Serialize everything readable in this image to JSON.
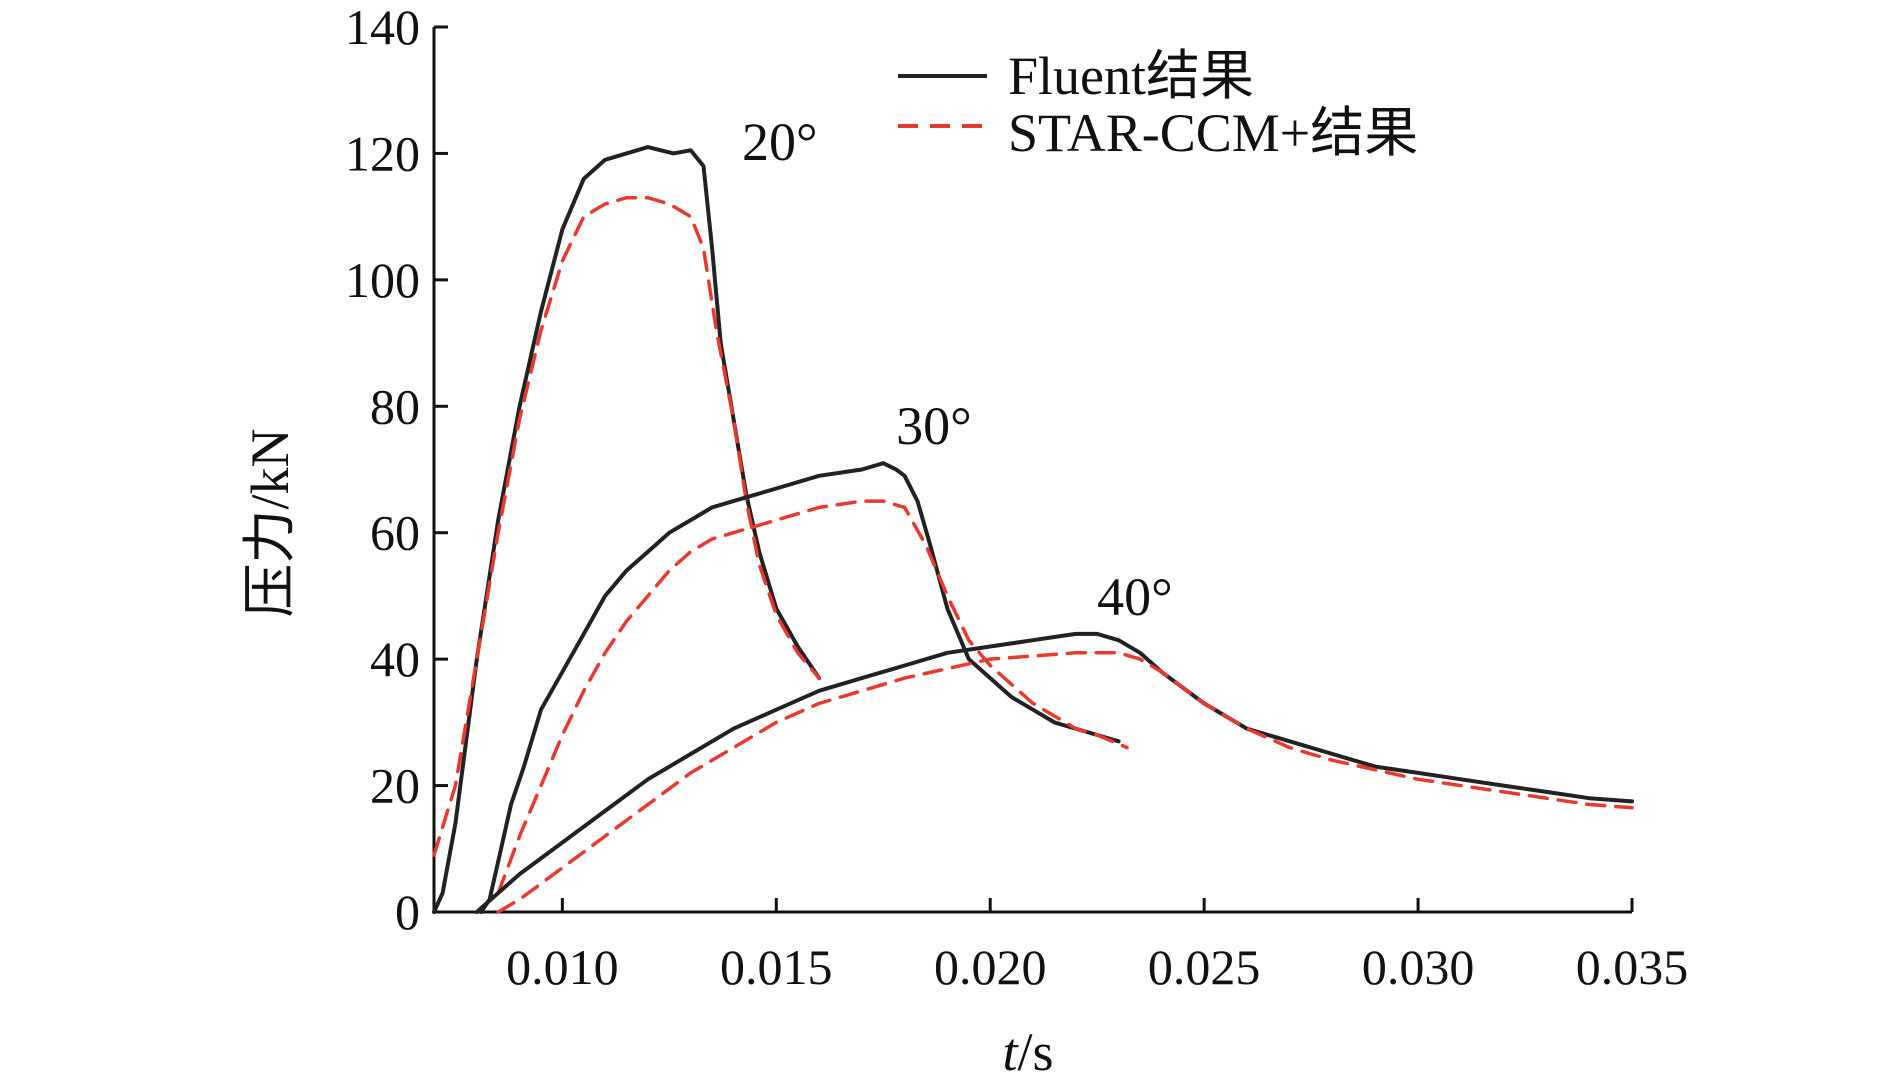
{
  "chart_data": {
    "type": "line",
    "title": "",
    "xlabel_italic": "t",
    "xlabel_unit": "/s",
    "ylabel": "压力/kN",
    "xlim": [
      0.007,
      0.035
    ],
    "ylim": [
      0,
      140
    ],
    "x_ticks": [
      0.01,
      0.015,
      0.02,
      0.025,
      0.03,
      0.035
    ],
    "x_tick_labels": [
      "0.010",
      "0.015",
      "0.020",
      "0.025",
      "0.030",
      "0.035"
    ],
    "y_ticks": [
      0,
      20,
      40,
      60,
      80,
      100,
      120,
      140
    ],
    "y_tick_labels": [
      "0",
      "20",
      "40",
      "60",
      "80",
      "100",
      "120",
      "140"
    ],
    "grid": false,
    "legend_position": "top-right",
    "legend": [
      {
        "label": "Fluent结果",
        "style": "solid",
        "color": "#222222"
      },
      {
        "label": "STAR-CCM+结果",
        "style": "dashed",
        "color": "#e8392f"
      }
    ],
    "annotations": [
      {
        "text": "20°",
        "x": 0.0142,
        "y": 119
      },
      {
        "text": "30°",
        "x": 0.0178,
        "y": 74
      },
      {
        "text": "40°",
        "x": 0.0225,
        "y": 47
      }
    ],
    "series": [
      {
        "name": "Fluent结果",
        "group": "20°",
        "style": "solid",
        "color": "#222222",
        "x": [
          0.007,
          0.0072,
          0.0075,
          0.008,
          0.0085,
          0.009,
          0.0095,
          0.01,
          0.0105,
          0.011,
          0.0115,
          0.012,
          0.0123,
          0.0126,
          0.013,
          0.0133,
          0.0135,
          0.0137,
          0.014,
          0.0143,
          0.0146,
          0.015,
          0.0155,
          0.016
        ],
        "y": [
          0,
          3,
          14,
          40,
          62,
          80,
          95,
          108,
          116,
          119,
          120,
          121,
          120.5,
          120,
          120.5,
          118,
          105,
          90,
          78,
          66,
          57,
          48,
          42,
          37
        ]
      },
      {
        "name": "STAR-CCM+结果",
        "group": "20°",
        "style": "dashed",
        "color": "#e8392f",
        "x": [
          0.007,
          0.0075,
          0.008,
          0.0085,
          0.009,
          0.0095,
          0.01,
          0.0105,
          0.011,
          0.0115,
          0.012,
          0.0125,
          0.013,
          0.0133,
          0.0136,
          0.014,
          0.0143,
          0.0146,
          0.015,
          0.0155,
          0.016
        ],
        "y": [
          9,
          20,
          40,
          60,
          78,
          92,
          103,
          110,
          112,
          113,
          113,
          112,
          110,
          105,
          92,
          78,
          65,
          55,
          47,
          41,
          37
        ]
      },
      {
        "name": "Fluent结果",
        "group": "30°",
        "style": "solid",
        "color": "#222222",
        "x": [
          0.0081,
          0.0083,
          0.0085,
          0.0088,
          0.0091,
          0.0095,
          0.01,
          0.0105,
          0.011,
          0.0115,
          0.012,
          0.0125,
          0.013,
          0.0135,
          0.014,
          0.015,
          0.016,
          0.017,
          0.0175,
          0.0178,
          0.018,
          0.0183,
          0.0186,
          0.019,
          0.0195,
          0.02,
          0.0205,
          0.021,
          0.0215,
          0.022,
          0.0225,
          0.023
        ],
        "y": [
          0,
          2,
          8,
          17,
          23,
          32,
          38,
          44,
          50,
          54,
          57,
          60,
          62,
          64,
          65,
          67,
          69,
          70,
          71,
          70,
          69,
          65,
          58,
          48,
          40,
          37,
          34,
          32,
          30,
          29,
          28,
          27
        ]
      },
      {
        "name": "STAR-CCM+结果",
        "group": "30°",
        "style": "dashed",
        "color": "#e8392f",
        "x": [
          0.0085,
          0.009,
          0.0095,
          0.01,
          0.0105,
          0.011,
          0.0115,
          0.012,
          0.0125,
          0.013,
          0.0135,
          0.014,
          0.015,
          0.016,
          0.017,
          0.0175,
          0.018,
          0.0185,
          0.019,
          0.0195,
          0.02,
          0.0205,
          0.021,
          0.0215,
          0.022,
          0.0225,
          0.0232
        ],
        "y": [
          3,
          12,
          20,
          28,
          35,
          41,
          46,
          50,
          54,
          57,
          59,
          60,
          62,
          64,
          65,
          65,
          64,
          58,
          50,
          43,
          39,
          36,
          33,
          31,
          29,
          28,
          26
        ]
      },
      {
        "name": "Fluent结果",
        "group": "40°",
        "style": "solid",
        "color": "#222222",
        "x": [
          0.008,
          0.0085,
          0.009,
          0.01,
          0.011,
          0.012,
          0.013,
          0.014,
          0.015,
          0.016,
          0.017,
          0.018,
          0.019,
          0.02,
          0.021,
          0.0215,
          0.022,
          0.0225,
          0.023,
          0.0235,
          0.024,
          0.025,
          0.026,
          0.027,
          0.028,
          0.029,
          0.03,
          0.031,
          0.032,
          0.033,
          0.034,
          0.035
        ],
        "y": [
          0,
          3,
          6,
          11,
          16,
          21,
          25,
          29,
          32,
          35,
          37,
          39,
          41,
          42,
          43,
          43.5,
          44,
          44,
          43,
          41,
          38,
          33,
          29,
          27,
          25,
          23,
          22,
          21,
          20,
          19,
          18,
          17.5
        ]
      },
      {
        "name": "STAR-CCM+结果",
        "group": "40°",
        "style": "dashed",
        "color": "#e8392f",
        "x": [
          0.0085,
          0.009,
          0.01,
          0.011,
          0.012,
          0.013,
          0.014,
          0.015,
          0.016,
          0.017,
          0.018,
          0.019,
          0.02,
          0.021,
          0.022,
          0.023,
          0.0235,
          0.024,
          0.025,
          0.026,
          0.027,
          0.028,
          0.029,
          0.03,
          0.031,
          0.032,
          0.033,
          0.034,
          0.035
        ],
        "y": [
          0,
          2,
          7,
          12,
          17,
          22,
          26,
          30,
          33,
          35,
          37,
          38.5,
          40,
          40.5,
          41,
          41,
          40,
          38,
          33,
          29,
          26,
          24,
          22.5,
          21,
          20,
          19,
          18,
          17,
          16.5
        ]
      }
    ]
  }
}
